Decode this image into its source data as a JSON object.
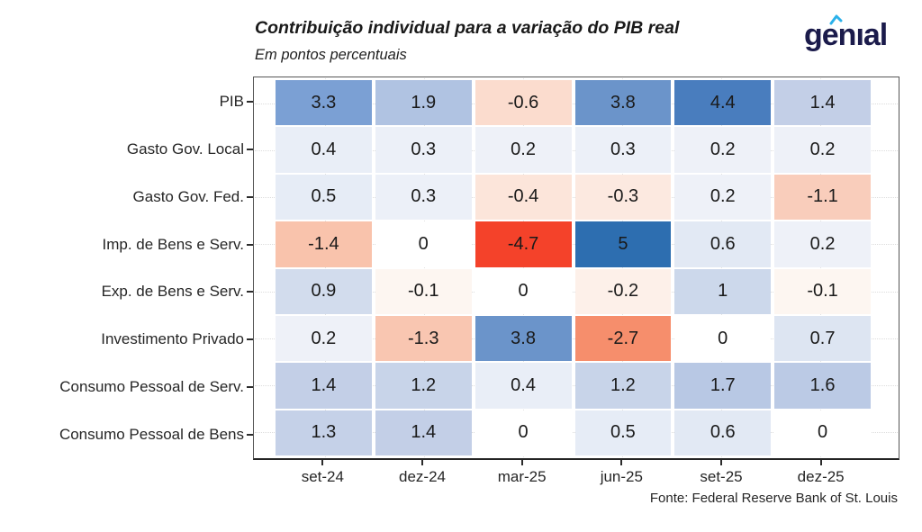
{
  "header": {
    "title": "Contribuição individual para a variação do PIB real",
    "subtitle": "Em pontos percentuais",
    "logo_text": "genıal",
    "logo_color": "#1b1b4b",
    "logo_accent_color": "#2bb1ea"
  },
  "footer": {
    "source": "Fonte: Federal Reserve Bank of St. Louis"
  },
  "chart_data": {
    "type": "heatmap",
    "title": "Contribuição individual para a variação do PIB real",
    "subtitle": "Em pontos percentuais",
    "unit": "pontos percentuais",
    "columns": [
      "set-24",
      "dez-24",
      "mar-25",
      "jun-25",
      "set-25",
      "dez-25"
    ],
    "rows": [
      "PIB",
      "Gasto Gov. Local",
      "Gasto Gov. Fed.",
      "Imp. de Bens e Serv.",
      "Exp. de Bens e Serv.",
      "Investimento Privado",
      "Consumo Pessoal de Serv.",
      "Consumo Pessoal de Bens"
    ],
    "values": [
      [
        3.3,
        1.9,
        -0.6,
        3.8,
        4.4,
        1.4
      ],
      [
        0.4,
        0.3,
        0.2,
        0.3,
        0.2,
        0.2
      ],
      [
        0.5,
        0.3,
        -0.4,
        -0.3,
        0.2,
        -1.1
      ],
      [
        -1.4,
        0,
        -4.7,
        5,
        0.6,
        0.2
      ],
      [
        0.9,
        -0.1,
        0,
        -0.2,
        1,
        -0.1
      ],
      [
        0.2,
        -1.3,
        3.8,
        -2.7,
        0,
        0.7
      ],
      [
        1.4,
        1.2,
        0.4,
        1.2,
        1.7,
        1.6
      ],
      [
        1.3,
        1.4,
        0,
        0.5,
        0.6,
        0
      ]
    ],
    "value_range": [
      -4.7,
      5
    ],
    "grid": "dotted",
    "legend": "none",
    "color_scale": {
      "type": "diverging",
      "stops": [
        [
          -4.7,
          "#f4422a"
        ],
        [
          -2.7,
          "#f68e6c"
        ],
        [
          -1.4,
          "#f9c3ac"
        ],
        [
          -1.1,
          "#f9cdbb"
        ],
        [
          -0.6,
          "#fbdcce"
        ],
        [
          -0.3,
          "#fce9e0"
        ],
        [
          -0.1,
          "#fdf6f1"
        ],
        [
          0,
          "#ffffff"
        ],
        [
          0.2,
          "#eef1f8"
        ],
        [
          0.4,
          "#e9eef7"
        ],
        [
          0.6,
          "#e2e9f4"
        ],
        [
          1.0,
          "#ccd8eb"
        ],
        [
          1.4,
          "#c3cfe7"
        ],
        [
          1.9,
          "#b0c3e2"
        ],
        [
          3.3,
          "#7ba0d4"
        ],
        [
          3.8,
          "#6b94ca"
        ],
        [
          4.4,
          "#497dbe"
        ],
        [
          5,
          "#2d6eb0"
        ]
      ]
    },
    "footer": "Fonte: Federal Reserve Bank of St. Louis"
  }
}
